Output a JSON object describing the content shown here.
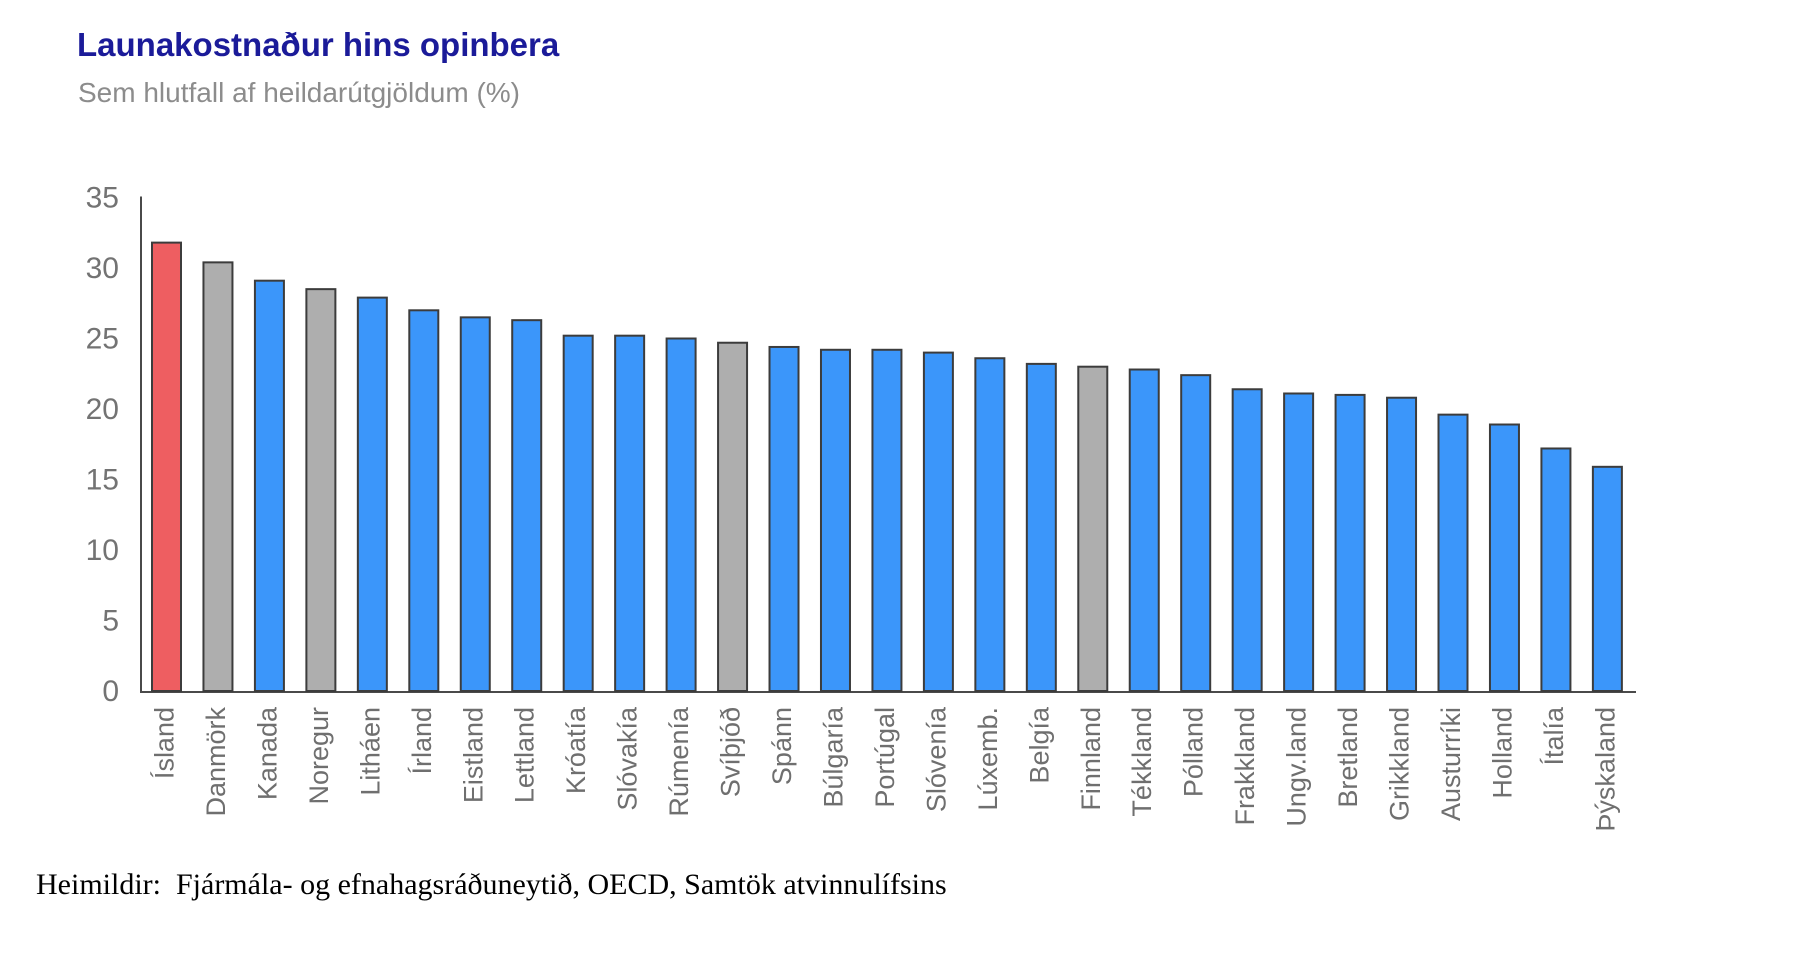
{
  "title": "Launakostnaður hins opinbera",
  "subtitle": "Sem hlutfall af heildarútgjöldum (%)",
  "source": "Heimildir:  Fjármála- og efnahagsráðuneytið, OECD, Samtök atvinnulífsins",
  "colors": {
    "highlight_red": "#ee5e61",
    "nordic_gray": "#aeaeae",
    "default_blue": "#3b96fa",
    "bar_border": "#3c3c3c",
    "axis": "#4a4a4a",
    "tick_label": "#737373",
    "category_label": "#6f6f6f",
    "title": "#1b1b99",
    "subtitle": "#8c8c8c"
  },
  "chart_data": {
    "type": "bar",
    "title": "Launakostnaður hins opinbera",
    "subtitle": "Sem hlutfall af heildarútgjöldum (%)",
    "xlabel": "",
    "ylabel": "",
    "ylim": [
      0,
      35
    ],
    "yticks": [
      0,
      5,
      10,
      15,
      20,
      25,
      30,
      35
    ],
    "grid": false,
    "legend_position": "none",
    "categories": [
      "Ísland",
      "Danmörk",
      "Kanada",
      "Noregur",
      "Litháen",
      "Írland",
      "Eistland",
      "Lettland",
      "Króatía",
      "Slóvakía",
      "Rúmenía",
      "Svíþjóð",
      "Spánn",
      "Búlgaría",
      "Portúgal",
      "Slóvenía",
      "Lúxemb.",
      "Belgía",
      "Finnland",
      "Tékkland",
      "Pólland",
      "Frakkland",
      "Ungv.land",
      "Bretland",
      "Grikkland",
      "Austurríki",
      "Holland",
      "Ítalía",
      "Þýskaland"
    ],
    "values": [
      31.8,
      30.4,
      29.1,
      28.5,
      27.9,
      27.0,
      26.5,
      26.3,
      25.2,
      25.2,
      25.0,
      24.7,
      24.4,
      24.2,
      24.2,
      24.0,
      23.6,
      23.2,
      23.0,
      22.8,
      22.4,
      21.4,
      21.1,
      21.0,
      20.8,
      19.6,
      18.9,
      17.2,
      15.9
    ],
    "bar_roles": [
      "highlight_red",
      "nordic_gray",
      "default_blue",
      "nordic_gray",
      "default_blue",
      "default_blue",
      "default_blue",
      "default_blue",
      "default_blue",
      "default_blue",
      "default_blue",
      "nordic_gray",
      "default_blue",
      "default_blue",
      "default_blue",
      "default_blue",
      "default_blue",
      "default_blue",
      "nordic_gray",
      "default_blue",
      "default_blue",
      "default_blue",
      "default_blue",
      "default_blue",
      "default_blue",
      "default_blue",
      "default_blue",
      "default_blue",
      "default_blue"
    ]
  }
}
